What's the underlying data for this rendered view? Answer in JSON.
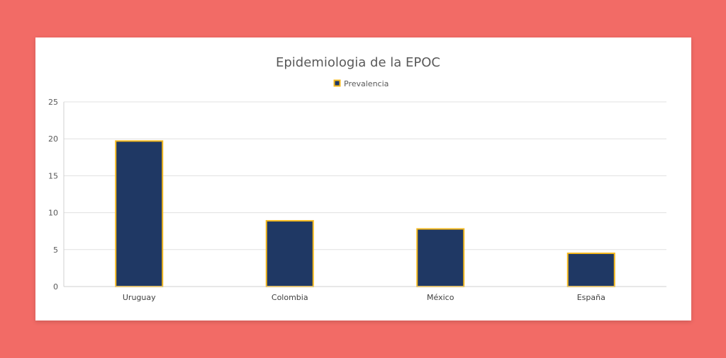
{
  "chart_data": {
    "type": "bar",
    "title": "Epidemiologia de la EPOC",
    "legend": "top",
    "categories": [
      "Uruguay",
      "Colombia",
      "México",
      "España"
    ],
    "series": [
      {
        "name": "Prevalencia",
        "values": [
          19.7,
          8.9,
          7.8,
          4.5
        ]
      }
    ],
    "ylim": [
      0,
      25
    ],
    "yticks": [
      "0",
      "5",
      "10",
      "15",
      "20",
      "25"
    ],
    "grid": true,
    "colors": {
      "bar_fill": "#1f3864",
      "bar_border": "#f4b81c",
      "grid": "#e0e0e0",
      "background": "#f26b66"
    }
  }
}
